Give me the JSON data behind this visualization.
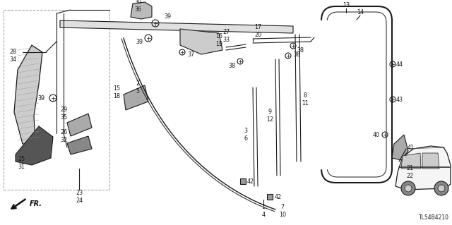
{
  "bg_color": "#ffffff",
  "diagram_code": "TL54B4210",
  "fig_width": 6.4,
  "fig_height": 3.19,
  "lc": "#1a1a1a",
  "tc": "#1a1a1a",
  "fontsize": 5.8
}
